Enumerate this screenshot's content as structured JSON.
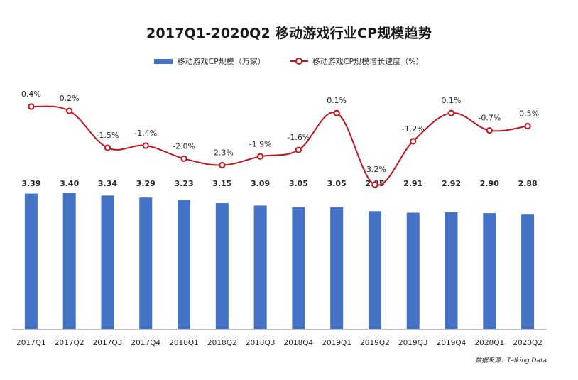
{
  "title": "2017Q1-2020Q2  移动游戏行业CP规模趋势",
  "source": "数据来源：Talking Data",
  "chart_data": {
    "type": "bar",
    "title": "2017Q1-2020Q2  移动游戏行业CP规模趋势",
    "categories": [
      "2017Q1",
      "2017Q2",
      "2017Q3",
      "2017Q4",
      "2018Q1",
      "2018Q2",
      "2018Q3",
      "2018Q4",
      "2019Q1",
      "2019Q2",
      "2019Q3",
      "2019Q4",
      "2020Q1",
      "2020Q2"
    ],
    "series": [
      {
        "name": "移动游戏CP规模（万家）",
        "type": "bar",
        "color": "#4472C4",
        "values": [
          3.39,
          3.4,
          3.34,
          3.29,
          3.23,
          3.15,
          3.09,
          3.05,
          3.05,
          2.95,
          2.91,
          2.92,
          2.9,
          2.88
        ],
        "labels": [
          "3.39",
          "3.40",
          "3.34",
          "3.29",
          "3.23",
          "3.15",
          "3.09",
          "3.05",
          "3.05",
          "2.95",
          "2.91",
          "2.92",
          "2.90",
          "2.88"
        ]
      },
      {
        "name": "移动游戏CP规模增长速度（%）",
        "type": "line",
        "color": "#C0161E",
        "values": [
          0.4,
          0.2,
          -1.5,
          -1.4,
          -2.0,
          -2.3,
          -1.9,
          -1.6,
          0.1,
          -3.2,
          -1.2,
          0.1,
          -0.7,
          -0.5
        ],
        "labels": [
          "0.4%",
          "0.2%",
          "-1.5%",
          "-1.4%",
          "-2.0%",
          "-2.3%",
          "-1.9%",
          "-1.6%",
          "0.1%",
          "-3.2%",
          "-1.2%",
          "0.1%",
          "-0.7%",
          "-0.5%"
        ]
      }
    ],
    "legend_position": "top",
    "grid": false
  }
}
